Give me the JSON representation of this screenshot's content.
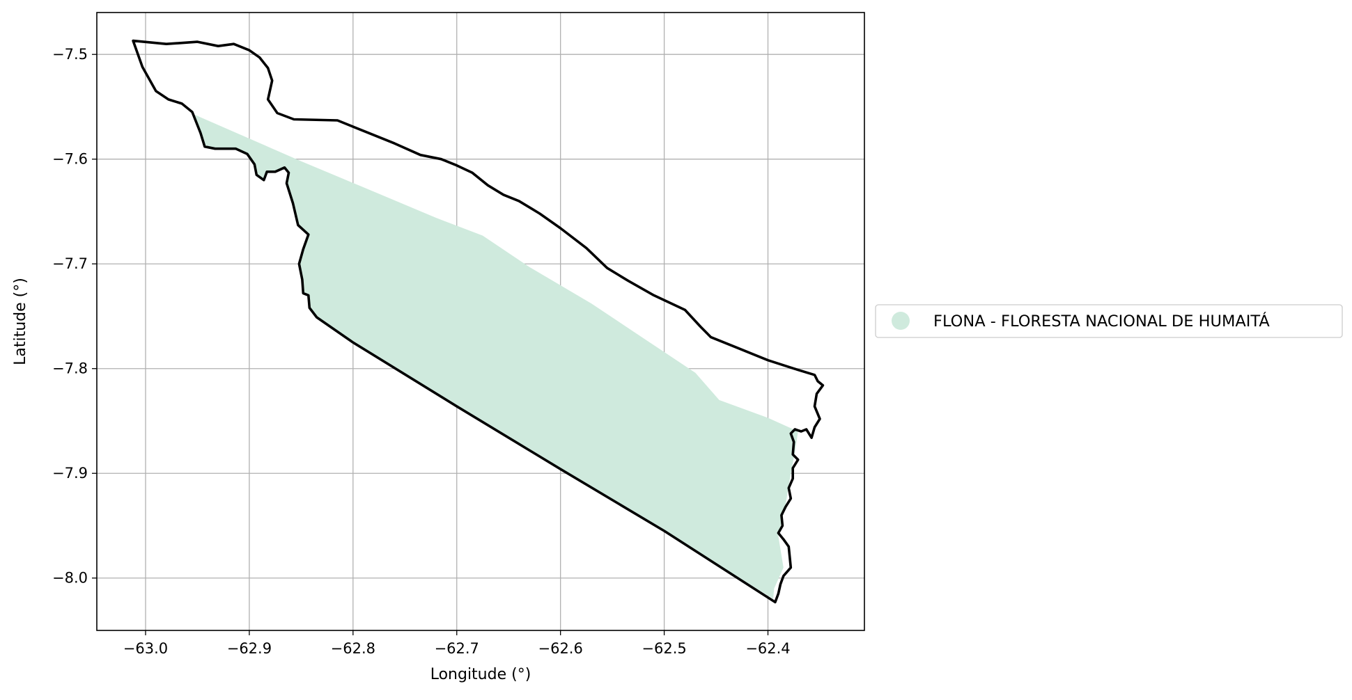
{
  "chart_data": {
    "type": "map",
    "xlabel": "Longitude (°)",
    "ylabel": "Latitude (°)",
    "xlim": [
      -63.047,
      -62.307
    ],
    "ylim": [
      -8.05,
      -7.46
    ],
    "grid": true,
    "xticks": [
      {
        "value": -63.0,
        "label": "−63.0"
      },
      {
        "value": -62.9,
        "label": "−62.9"
      },
      {
        "value": -62.8,
        "label": "−62.8"
      },
      {
        "value": -62.7,
        "label": "−62.7"
      },
      {
        "value": -62.6,
        "label": "−62.6"
      },
      {
        "value": -62.5,
        "label": "−62.5"
      },
      {
        "value": -62.4,
        "label": "−62.4"
      }
    ],
    "yticks": [
      {
        "value": -7.5,
        "label": "−7.5"
      },
      {
        "value": -7.6,
        "label": "−7.6"
      },
      {
        "value": -7.7,
        "label": "−7.7"
      },
      {
        "value": -7.8,
        "label": "−7.8"
      },
      {
        "value": -7.9,
        "label": "−7.9"
      },
      {
        "value": -8.0,
        "label": "−8.0"
      }
    ],
    "legend": {
      "placement": "right",
      "entries": [
        {
          "label": "FLONA - FLORESTA NACIONAL DE HUMAITÁ",
          "color": "#cfeadd",
          "marker": "circle"
        }
      ]
    },
    "fill_color": "#cfeadd",
    "outline_color": "#000000",
    "protected_area": [
      [
        -62.954,
        -7.557
      ],
      [
        -62.91,
        -7.576
      ],
      [
        -62.85,
        -7.602
      ],
      [
        -62.78,
        -7.631
      ],
      [
        -62.72,
        -7.656
      ],
      [
        -62.675,
        -7.673
      ],
      [
        -62.63,
        -7.703
      ],
      [
        -62.57,
        -7.738
      ],
      [
        -62.52,
        -7.771
      ],
      [
        -62.47,
        -7.804
      ],
      [
        -62.447,
        -7.83
      ],
      [
        -62.4,
        -7.847
      ],
      [
        -62.371,
        -7.86
      ],
      [
        -62.374,
        -7.88
      ],
      [
        -62.378,
        -7.9
      ],
      [
        -62.383,
        -7.93
      ],
      [
        -62.39,
        -7.96
      ],
      [
        -62.385,
        -7.99
      ],
      [
        -62.394,
        -8.01
      ],
      [
        -62.395,
        -8.02
      ],
      [
        -62.5,
        -7.955
      ],
      [
        -62.6,
        -7.896
      ],
      [
        -62.7,
        -7.836
      ],
      [
        -62.8,
        -7.775
      ],
      [
        -62.835,
        -7.751
      ],
      [
        -62.842,
        -7.742
      ],
      [
        -62.843,
        -7.73
      ],
      [
        -62.848,
        -7.728
      ],
      [
        -62.849,
        -7.715
      ],
      [
        -62.852,
        -7.7
      ],
      [
        -62.848,
        -7.686
      ],
      [
        -62.843,
        -7.672
      ],
      [
        -62.853,
        -7.663
      ],
      [
        -62.858,
        -7.642
      ],
      [
        -62.864,
        -7.623
      ],
      [
        -62.862,
        -7.613
      ],
      [
        -62.866,
        -7.608
      ],
      [
        -62.875,
        -7.612
      ],
      [
        -62.883,
        -7.612
      ],
      [
        -62.886,
        -7.62
      ],
      [
        -62.893,
        -7.615
      ],
      [
        -62.895,
        -7.605
      ],
      [
        -62.902,
        -7.595
      ],
      [
        -62.913,
        -7.59
      ],
      [
        -62.933,
        -7.59
      ],
      [
        -62.943,
        -7.588
      ],
      [
        -62.947,
        -7.575
      ]
    ],
    "boundary": [
      [
        -63.012,
        -7.487
      ],
      [
        -62.98,
        -7.49
      ],
      [
        -62.95,
        -7.488
      ],
      [
        -62.93,
        -7.492
      ],
      [
        -62.915,
        -7.49
      ],
      [
        -62.9,
        -7.496
      ],
      [
        -62.89,
        -7.503
      ],
      [
        -62.882,
        -7.513
      ],
      [
        -62.878,
        -7.525
      ],
      [
        -62.882,
        -7.543
      ],
      [
        -62.873,
        -7.556
      ],
      [
        -62.857,
        -7.562
      ],
      [
        -62.815,
        -7.563
      ],
      [
        -62.79,
        -7.573
      ],
      [
        -62.76,
        -7.585
      ],
      [
        -62.735,
        -7.596
      ],
      [
        -62.715,
        -7.6
      ],
      [
        -62.7,
        -7.606
      ],
      [
        -62.685,
        -7.613
      ],
      [
        -62.67,
        -7.625
      ],
      [
        -62.655,
        -7.634
      ],
      [
        -62.64,
        -7.64
      ],
      [
        -62.62,
        -7.652
      ],
      [
        -62.6,
        -7.666
      ],
      [
        -62.575,
        -7.685
      ],
      [
        -62.555,
        -7.704
      ],
      [
        -62.535,
        -7.716
      ],
      [
        -62.51,
        -7.73
      ],
      [
        -62.48,
        -7.744
      ],
      [
        -62.465,
        -7.76
      ],
      [
        -62.455,
        -7.77
      ],
      [
        -62.43,
        -7.78
      ],
      [
        -62.4,
        -7.792
      ],
      [
        -62.375,
        -7.8
      ],
      [
        -62.355,
        -7.806
      ],
      [
        -62.352,
        -7.812
      ],
      [
        -62.347,
        -7.816
      ],
      [
        -62.353,
        -7.824
      ],
      [
        -62.355,
        -7.836
      ],
      [
        -62.35,
        -7.848
      ],
      [
        -62.355,
        -7.856
      ],
      [
        -62.358,
        -7.866
      ],
      [
        -62.363,
        -7.858
      ],
      [
        -62.368,
        -7.86
      ],
      [
        -62.374,
        -7.858
      ],
      [
        -62.378,
        -7.862
      ],
      [
        -62.375,
        -7.87
      ],
      [
        -62.376,
        -7.882
      ],
      [
        -62.371,
        -7.887
      ],
      [
        -62.376,
        -7.895
      ],
      [
        -62.376,
        -7.905
      ],
      [
        -62.38,
        -7.914
      ],
      [
        -62.378,
        -7.924
      ],
      [
        -62.383,
        -7.932
      ],
      [
        -62.387,
        -7.94
      ],
      [
        -62.386,
        -7.95
      ],
      [
        -62.39,
        -7.957
      ],
      [
        -62.385,
        -7.963
      ],
      [
        -62.38,
        -7.97
      ],
      [
        -62.379,
        -7.98
      ],
      [
        -62.378,
        -7.99
      ],
      [
        -62.385,
        -7.998
      ],
      [
        -62.388,
        -8.006
      ],
      [
        -62.39,
        -8.015
      ],
      [
        -62.393,
        -8.023
      ],
      [
        -62.5,
        -7.955
      ],
      [
        -62.6,
        -7.896
      ],
      [
        -62.7,
        -7.836
      ],
      [
        -62.8,
        -7.775
      ],
      [
        -62.835,
        -7.751
      ],
      [
        -62.842,
        -7.742
      ],
      [
        -62.843,
        -7.73
      ],
      [
        -62.848,
        -7.728
      ],
      [
        -62.849,
        -7.715
      ],
      [
        -62.852,
        -7.7
      ],
      [
        -62.848,
        -7.686
      ],
      [
        -62.843,
        -7.672
      ],
      [
        -62.853,
        -7.663
      ],
      [
        -62.858,
        -7.642
      ],
      [
        -62.864,
        -7.623
      ],
      [
        -62.862,
        -7.613
      ],
      [
        -62.866,
        -7.608
      ],
      [
        -62.875,
        -7.612
      ],
      [
        -62.883,
        -7.612
      ],
      [
        -62.886,
        -7.62
      ],
      [
        -62.893,
        -7.615
      ],
      [
        -62.895,
        -7.605
      ],
      [
        -62.902,
        -7.595
      ],
      [
        -62.913,
        -7.59
      ],
      [
        -62.933,
        -7.59
      ],
      [
        -62.943,
        -7.588
      ],
      [
        -62.947,
        -7.575
      ],
      [
        -62.955,
        -7.555
      ],
      [
        -62.965,
        -7.547
      ],
      [
        -62.978,
        -7.543
      ],
      [
        -62.99,
        -7.535
      ],
      [
        -63.003,
        -7.512
      ],
      [
        -63.012,
        -7.487
      ]
    ]
  }
}
